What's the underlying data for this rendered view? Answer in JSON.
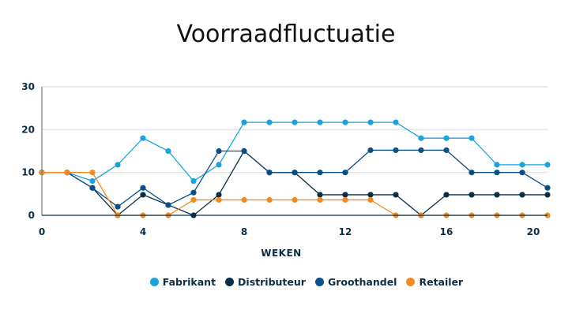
{
  "chart_data": {
    "type": "line",
    "title": "Voorraadfluctuatie",
    "xlabel": "WEKEN",
    "ylabel": "",
    "x": [
      0,
      1,
      2,
      3,
      4,
      5,
      6,
      7,
      8,
      9,
      10,
      11,
      12,
      13,
      14,
      15,
      16,
      17,
      18,
      19,
      20
    ],
    "xlim": [
      0,
      20
    ],
    "ylim": [
      0,
      30
    ],
    "xticks": [
      "0",
      "4",
      "8",
      "12",
      "16",
      "20"
    ],
    "yticks": [
      "0",
      "10",
      "20",
      "30"
    ],
    "grid": "horizontal",
    "legend": "bottom",
    "series": [
      {
        "name": "Fabrikant",
        "color": "#1aa3dd",
        "values": [
          10,
          10,
          8,
          11.8,
          18,
          15,
          8,
          11.8,
          21.7,
          21.7,
          21.7,
          21.7,
          21.7,
          21.7,
          21.7,
          18,
          18,
          18,
          11.8,
          11.8,
          11.8
        ]
      },
      {
        "name": "Distributeur",
        "color": "#0b2d45",
        "values": [
          10,
          10,
          6.4,
          0,
          4.8,
          2.4,
          0,
          4.8,
          15,
          10,
          10,
          4.8,
          4.8,
          4.8,
          4.8,
          0,
          4.8,
          4.8,
          4.8,
          4.8,
          4.8
        ]
      },
      {
        "name": "Groothandel",
        "color": "#0a5088",
        "values": [
          10,
          10,
          6.4,
          2,
          6.4,
          2.4,
          5.3,
          15,
          15,
          10,
          10,
          10,
          10,
          15.2,
          15.2,
          15.2,
          15.2,
          10,
          10,
          10,
          6.4
        ]
      },
      {
        "name": "Retailer",
        "color": "#f28a22",
        "values": [
          10,
          10,
          10,
          0,
          0,
          0,
          3.6,
          3.6,
          3.6,
          3.6,
          3.6,
          3.6,
          3.6,
          3.6,
          0,
          0,
          0,
          0,
          0,
          0,
          0
        ]
      }
    ]
  }
}
